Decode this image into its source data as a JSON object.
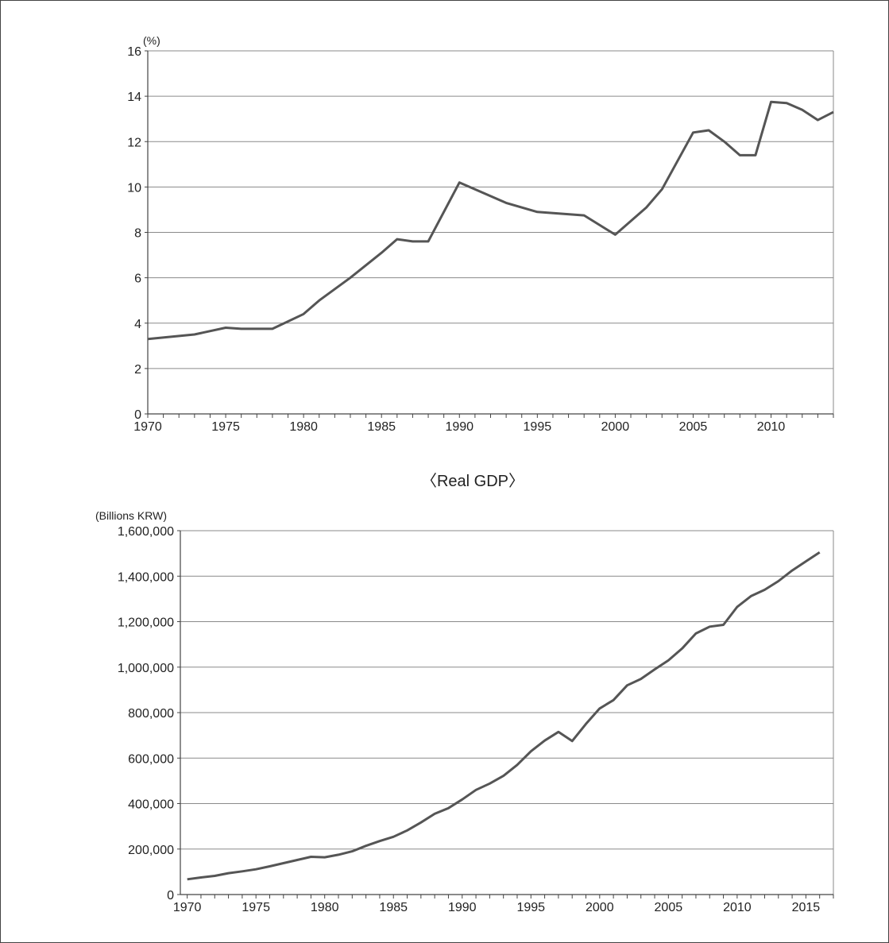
{
  "chart_data": [
    {
      "type": "line",
      "title": "",
      "xlabel": "",
      "ylabel": "(%)",
      "xlim": [
        1970,
        2014
      ],
      "ylim": [
        0,
        16
      ],
      "grid": true,
      "legend": "none",
      "x_ticks": [
        "1970",
        "1975",
        "1980",
        "1985",
        "1990",
        "1995",
        "2000",
        "2005",
        "2010"
      ],
      "y_ticks": [
        "0",
        "2",
        "4",
        "6",
        "8",
        "10",
        "12",
        "14",
        "16"
      ],
      "series": [
        {
          "x": [
            1970,
            1973,
            1975,
            1976,
            1978,
            1980,
            1981,
            1983,
            1985,
            1986,
            1987,
            1988,
            1990,
            1993,
            1995,
            1998,
            2000,
            2002,
            2003,
            2005,
            2006,
            2007,
            2008,
            2009,
            2010,
            2011,
            2012,
            2013,
            2014
          ],
          "values": [
            3.3,
            3.5,
            3.8,
            3.75,
            3.75,
            4.4,
            5.0,
            6.0,
            7.1,
            7.7,
            7.6,
            7.6,
            10.2,
            9.3,
            8.9,
            8.75,
            7.9,
            9.1,
            9.9,
            12.4,
            12.5,
            12.0,
            11.4,
            11.4,
            13.75,
            13.7,
            13.4,
            12.95,
            13.3
          ]
        }
      ]
    },
    {
      "type": "line",
      "title": "〈Real GDP〉",
      "xlabel": "",
      "ylabel": "(Billions KRW)",
      "xlim": [
        1969.5,
        2017
      ],
      "ylim": [
        0,
        1600000
      ],
      "grid": true,
      "legend": "none",
      "x_ticks": [
        "1970",
        "1975",
        "1980",
        "1985",
        "1990",
        "1995",
        "2000",
        "2005",
        "2010",
        "2015"
      ],
      "y_ticks": [
        "0",
        "200,000",
        "400,000",
        "600,000",
        "800,000",
        "1,000,000",
        "1,200,000",
        "1,400,000",
        "1,600,000"
      ],
      "series": [
        {
          "x": [
            1970,
            1971,
            1972,
            1973,
            1974,
            1975,
            1976,
            1977,
            1978,
            1979,
            1980,
            1981,
            1982,
            1983,
            1984,
            1985,
            1986,
            1987,
            1988,
            1989,
            1990,
            1991,
            1992,
            1993,
            1994,
            1995,
            1996,
            1997,
            1998,
            1999,
            2000,
            2001,
            2002,
            2003,
            2004,
            2005,
            2006,
            2007,
            2008,
            2009,
            2010,
            2011,
            2012,
            2013,
            2014,
            2015,
            2016
          ],
          "values": [
            67000,
            75000,
            82000,
            94000,
            102000,
            111000,
            124000,
            138000,
            152000,
            166000,
            164000,
            175000,
            190000,
            214000,
            235000,
            254000,
            282000,
            317000,
            355000,
            380000,
            418000,
            460000,
            488000,
            522000,
            570000,
            630000,
            677000,
            715000,
            675000,
            750000,
            818000,
            855000,
            920000,
            948000,
            990000,
            1030000,
            1082000,
            1148000,
            1178000,
            1186000,
            1265000,
            1312000,
            1340000,
            1378000,
            1425000,
            1465000,
            1505000
          ]
        }
      ]
    }
  ]
}
